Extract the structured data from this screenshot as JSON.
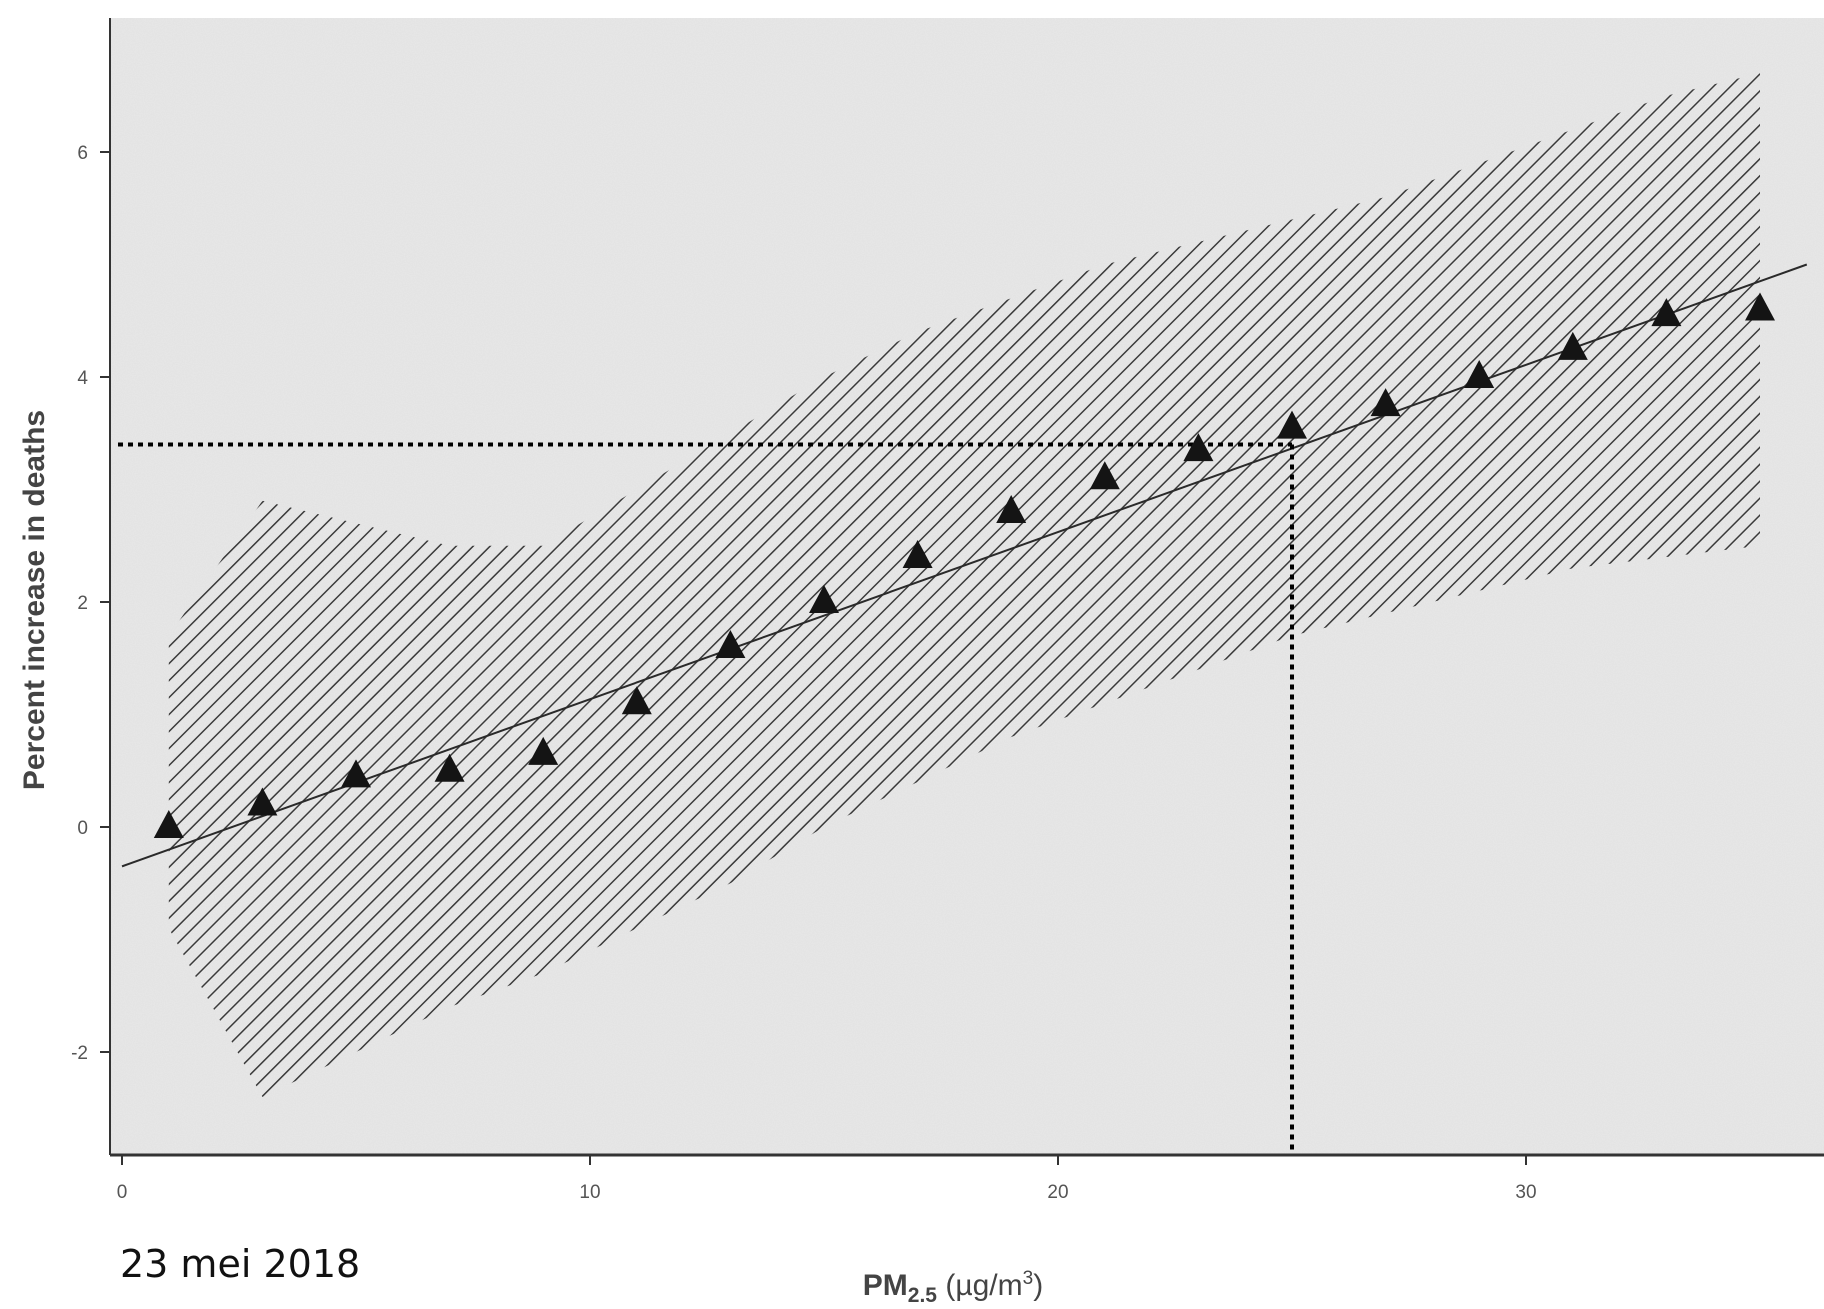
{
  "chart_data": {
    "type": "scatter",
    "title": "",
    "xlabel": "PM",
    "xlabel_sub": "2.5",
    "xlabel_units": " (µg/m",
    "xlabel_sup": "3",
    "xlabel_close": ")",
    "ylabel": "Percent increase in deaths",
    "xlim": [
      0,
      36
    ],
    "ylim": [
      -3,
      7.2
    ],
    "x_ticks": [
      0,
      10,
      20,
      30
    ],
    "y_ticks": [
      -2,
      0,
      2,
      4,
      6
    ],
    "grid": false,
    "legend": "none",
    "series": [
      {
        "marker": "triangle",
        "x": [
          1,
          3,
          5,
          7,
          9,
          11,
          13,
          15,
          17,
          19,
          21,
          23,
          25,
          27,
          29,
          31,
          33,
          35
        ],
        "y": [
          0.0,
          0.2,
          0.45,
          0.5,
          0.65,
          1.1,
          1.6,
          2.0,
          2.4,
          2.8,
          3.1,
          3.35,
          3.55,
          3.75,
          4.0,
          4.25,
          4.55,
          4.6
        ]
      }
    ],
    "fit_line": {
      "x": [
        0,
        36
      ],
      "y": [
        -0.35,
        5.0
      ]
    },
    "confidence_band": {
      "x": [
        1,
        3,
        5,
        7,
        9,
        11,
        13,
        15,
        17,
        19,
        21,
        23,
        25,
        27,
        29,
        31,
        33,
        35
      ],
      "upper": [
        1.7,
        2.9,
        2.7,
        2.5,
        2.5,
        3.0,
        3.5,
        4.0,
        4.4,
        4.7,
        5.0,
        5.2,
        5.4,
        5.6,
        5.9,
        6.2,
        6.5,
        6.7
      ],
      "lower": [
        -0.9,
        -2.4,
        -2.0,
        -1.6,
        -1.3,
        -0.9,
        -0.5,
        0.0,
        0.4,
        0.8,
        1.1,
        1.4,
        1.7,
        1.9,
        2.1,
        2.3,
        2.4,
        2.5
      ]
    },
    "reference_lines": {
      "x": 25,
      "y": 3.4
    },
    "colors": {
      "marker": "#141414",
      "fit_line": "#2a2a2a",
      "hatch": "#3a3a3a",
      "reference": "#000000",
      "plot_background": "#e9e9e9",
      "axis": "#333333"
    }
  },
  "footer": {
    "date": "23 mei 2018"
  }
}
